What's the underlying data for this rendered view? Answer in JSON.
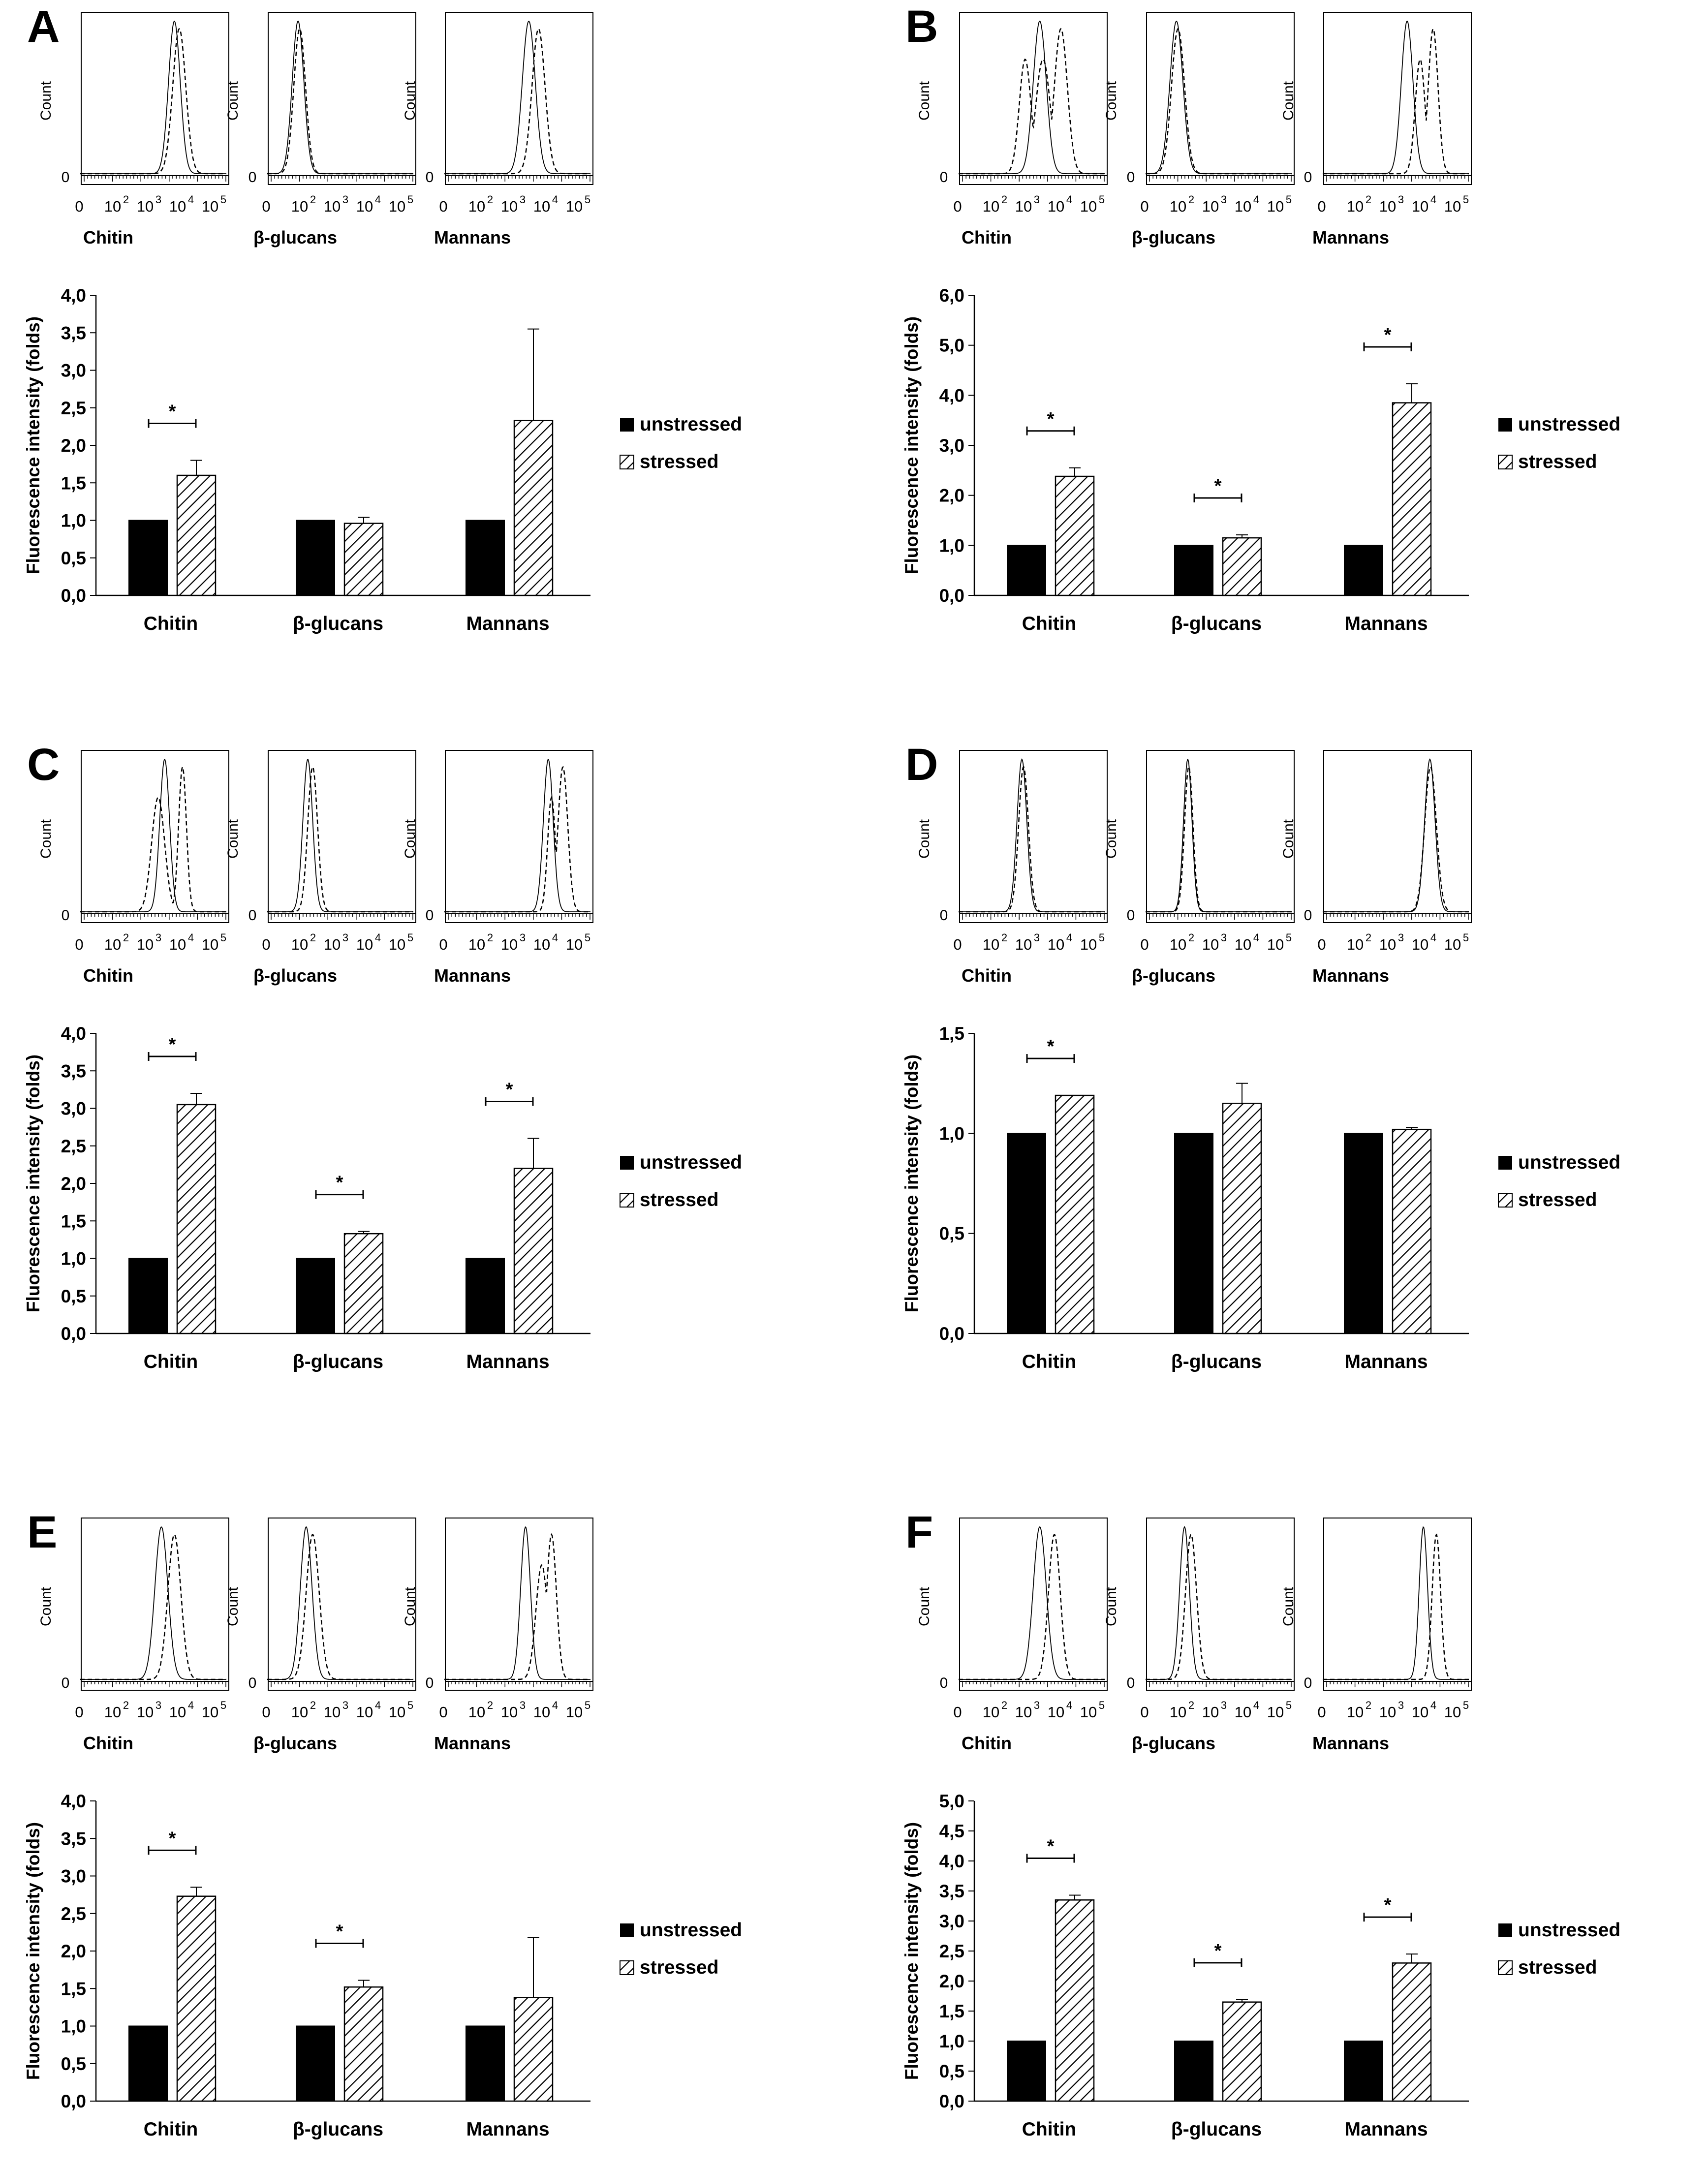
{
  "panels": [
    {
      "letter": "A",
      "hist_categories": [
        "Chitin",
        "β-glucans",
        "Mannans"
      ],
      "hist_y_label": "Count",
      "hist_y_zero": "0",
      "hist_ticks": [
        "0",
        "10",
        "10",
        "10",
        "10"
      ],
      "hist_tick_exps": [
        "",
        "2",
        "3",
        "4",
        "5"
      ],
      "histograms": [
        {
          "unstressed_peak": 3.9,
          "unstressed_width": 0.18,
          "stressed_peaks": [
            4.05
          ],
          "stressed_widths": [
            0.2
          ]
        },
        {
          "unstressed_peak": 1.95,
          "unstressed_width": 0.18,
          "stressed_peaks": [
            2.0
          ],
          "stressed_widths": [
            0.18
          ]
        },
        {
          "unstressed_peak": 3.6,
          "unstressed_width": 0.2,
          "stressed_peaks": [
            3.9
          ],
          "stressed_widths": [
            0.2
          ]
        }
      ]
    },
    {
      "letter": "B",
      "hist_categories": [
        "Chitin",
        "β-glucans",
        "Mannans"
      ],
      "hist_y_label": "Count",
      "hist_y_zero": "0",
      "hist_ticks": [
        "0",
        "10",
        "10",
        "10",
        "10"
      ],
      "hist_tick_exps": [
        "",
        "2",
        "3",
        "4",
        "5"
      ],
      "histograms": [
        {
          "unstressed_peak": 3.5,
          "unstressed_width": 0.2,
          "stressed_peaks": [
            3.05,
            3.6,
            4.15
          ],
          "stressed_widths": [
            0.18,
            0.22,
            0.2
          ]
        },
        {
          "unstressed_peak": 1.95,
          "unstressed_width": 0.2,
          "stressed_peaks": [
            2.0
          ],
          "stressed_widths": [
            0.2
          ]
        },
        {
          "unstressed_peak": 3.6,
          "unstressed_width": 0.18,
          "stressed_peaks": [
            4.0,
            4.4
          ],
          "stressed_widths": [
            0.15,
            0.15
          ]
        }
      ]
    },
    {
      "letter": "C",
      "hist_categories": [
        "Chitin",
        "β-glucans",
        "Mannans"
      ],
      "hist_y_label": "Count",
      "hist_y_zero": "0",
      "hist_ticks": [
        "0",
        "10",
        "10",
        "10",
        "10"
      ],
      "hist_tick_exps": [
        "",
        "2",
        "3",
        "4",
        "5"
      ],
      "histograms": [
        {
          "unstressed_peak": 3.6,
          "unstressed_width": 0.15,
          "stressed_peaks": [
            3.4,
            4.15
          ],
          "stressed_widths": [
            0.2,
            0.12
          ]
        },
        {
          "unstressed_peak": 2.25,
          "unstressed_width": 0.15,
          "stressed_peaks": [
            2.4
          ],
          "stressed_widths": [
            0.15
          ]
        },
        {
          "unstressed_peak": 4.2,
          "unstressed_width": 0.15,
          "stressed_peaks": [
            4.3,
            4.65
          ],
          "stressed_widths": [
            0.12,
            0.15
          ]
        }
      ]
    },
    {
      "letter": "D",
      "hist_categories": [
        "Chitin",
        "β-glucans",
        "Mannans"
      ],
      "hist_y_label": "Count",
      "hist_y_zero": "0",
      "hist_ticks": [
        "0",
        "10",
        "10",
        "10",
        "10"
      ],
      "hist_tick_exps": [
        "",
        "2",
        "3",
        "4",
        "5"
      ],
      "histograms": [
        {
          "unstressed_peak": 2.95,
          "unstressed_width": 0.15,
          "stressed_peaks": [
            3.0
          ],
          "stressed_widths": [
            0.15
          ]
        },
        {
          "unstressed_peak": 2.3,
          "unstressed_width": 0.13,
          "stressed_peaks": [
            2.33
          ],
          "stressed_widths": [
            0.13
          ]
        },
        {
          "unstressed_peak": 4.3,
          "unstressed_width": 0.16,
          "stressed_peaks": [
            4.32
          ],
          "stressed_widths": [
            0.18
          ]
        }
      ]
    },
    {
      "letter": "E",
      "hist_categories": [
        "Chitin",
        "β-glucans",
        "Mannans"
      ],
      "hist_y_label": "Count",
      "hist_y_zero": "0",
      "hist_ticks": [
        "0",
        "10",
        "10",
        "10",
        "10"
      ],
      "hist_tick_exps": [
        "",
        "2",
        "3",
        "4",
        "5"
      ],
      "histograms": [
        {
          "unstressed_peak": 3.5,
          "unstressed_width": 0.2,
          "stressed_peaks": [
            3.9
          ],
          "stressed_widths": [
            0.2
          ]
        },
        {
          "unstressed_peak": 2.2,
          "unstressed_width": 0.18,
          "stressed_peaks": [
            2.4
          ],
          "stressed_widths": [
            0.2
          ]
        },
        {
          "unstressed_peak": 3.5,
          "unstressed_width": 0.15,
          "stressed_peaks": [
            4.0,
            4.3
          ],
          "stressed_widths": [
            0.18,
            0.15
          ]
        }
      ]
    },
    {
      "letter": "F",
      "hist_categories": [
        "Chitin",
        "β-glucans",
        "Mannans"
      ],
      "hist_y_label": "Count",
      "hist_y_zero": "0",
      "hist_ticks": [
        "0",
        "10",
        "10",
        "10",
        "10"
      ],
      "hist_tick_exps": [
        "",
        "2",
        "3",
        "4",
        "5"
      ],
      "histograms": [
        {
          "unstressed_peak": 3.5,
          "unstressed_width": 0.2,
          "stressed_peaks": [
            3.95
          ],
          "stressed_widths": [
            0.18
          ]
        },
        {
          "unstressed_peak": 2.2,
          "unstressed_width": 0.15,
          "stressed_peaks": [
            2.4
          ],
          "stressed_widths": [
            0.17
          ]
        },
        {
          "unstressed_peak": 4.1,
          "unstressed_width": 0.13,
          "stressed_peaks": [
            4.5
          ],
          "stressed_widths": [
            0.13
          ]
        }
      ]
    }
  ],
  "legend": {
    "unstressed": "unstressed",
    "stressed": "stressed"
  },
  "colors": {
    "unstressed": "#000000",
    "stressed_hatch": "#000000",
    "background": "#ffffff"
  },
  "chart_data": [
    {
      "panel": "A",
      "type": "bar",
      "categories": [
        "Chitin",
        "β-glucans",
        "Mannans"
      ],
      "ylabel": "Fluorescence intensity (folds)",
      "ylim": [
        0,
        4.0
      ],
      "yticks": [
        "0,0",
        "0,5",
        "1,0",
        "1,5",
        "2,0",
        "2,5",
        "3,0",
        "3,5",
        "4,0"
      ],
      "series": [
        {
          "name": "unstressed",
          "values": [
            1.0,
            1.0,
            1.0
          ],
          "errors": [
            0,
            0,
            0
          ]
        },
        {
          "name": "stressed",
          "values": [
            1.6,
            0.96,
            2.33
          ],
          "errors": [
            0.2,
            0.08,
            1.22
          ]
        }
      ],
      "significance": [
        true,
        false,
        false
      ],
      "significance_label": "*",
      "legend": "right"
    },
    {
      "panel": "B",
      "type": "bar",
      "categories": [
        "Chitin",
        "β-glucans",
        "Mannans"
      ],
      "ylabel": "Fluorescence intensity (folds)",
      "ylim": [
        0,
        6.0
      ],
      "yticks": [
        "0,0",
        "1,0",
        "2,0",
        "3,0",
        "4,0",
        "5,0",
        "6,0"
      ],
      "series": [
        {
          "name": "unstressed",
          "values": [
            1.0,
            1.0,
            1.0
          ],
          "errors": [
            0,
            0,
            0
          ]
        },
        {
          "name": "stressed",
          "values": [
            2.38,
            1.15,
            3.85
          ],
          "errors": [
            0.17,
            0.06,
            0.38
          ]
        }
      ],
      "significance": [
        true,
        true,
        true
      ],
      "significance_label": "*",
      "legend": "right"
    },
    {
      "panel": "C",
      "type": "bar",
      "categories": [
        "Chitin",
        "β-glucans",
        "Mannans"
      ],
      "ylabel": "Fluorescence intensity (folds)",
      "ylim": [
        0,
        4.0
      ],
      "yticks": [
        "0,0",
        "0,5",
        "1,0",
        "1,5",
        "2,0",
        "2,5",
        "3,0",
        "3,5",
        "4,0"
      ],
      "series": [
        {
          "name": "unstressed",
          "values": [
            1.0,
            1.0,
            1.0
          ],
          "errors": [
            0,
            0,
            0
          ]
        },
        {
          "name": "stressed",
          "values": [
            3.05,
            1.33,
            2.2
          ],
          "errors": [
            0.15,
            0.03,
            0.4
          ]
        }
      ],
      "significance": [
        true,
        true,
        true
      ],
      "significance_label": "*",
      "legend": "right"
    },
    {
      "panel": "D",
      "type": "bar",
      "categories": [
        "Chitin",
        "β-glucans",
        "Mannans"
      ],
      "ylabel": "Fluorescence intensity (folds)",
      "ylim": [
        0,
        1.5
      ],
      "yticks": [
        "0,0",
        "0,5",
        "1,0",
        "1,5"
      ],
      "series": [
        {
          "name": "unstressed",
          "values": [
            1.0,
            1.0,
            1.0
          ],
          "errors": [
            0,
            0,
            0
          ]
        },
        {
          "name": "stressed",
          "values": [
            1.19,
            1.15,
            1.02
          ],
          "errors": [
            0.0,
            0.1,
            0.01
          ]
        }
      ],
      "significance": [
        true,
        false,
        false
      ],
      "significance_label": "*",
      "legend": "right"
    },
    {
      "panel": "E",
      "type": "bar",
      "categories": [
        "Chitin",
        "β-glucans",
        "Mannans"
      ],
      "ylabel": "Fluorescence intensity (folds)",
      "ylim": [
        0,
        4.0
      ],
      "yticks": [
        "0,0",
        "0,5",
        "1,0",
        "1,5",
        "2,0",
        "2,5",
        "3,0",
        "3,5",
        "4,0"
      ],
      "series": [
        {
          "name": "unstressed",
          "values": [
            1.0,
            1.0,
            1.0
          ],
          "errors": [
            0,
            0,
            0
          ]
        },
        {
          "name": "stressed",
          "values": [
            2.73,
            1.52,
            1.38
          ],
          "errors": [
            0.12,
            0.09,
            0.8
          ]
        }
      ],
      "significance": [
        true,
        true,
        false
      ],
      "significance_label": "*",
      "legend": "right"
    },
    {
      "panel": "F",
      "type": "bar",
      "categories": [
        "Chitin",
        "β-glucans",
        "Mannans"
      ],
      "ylabel": "Fluorescence intensity (folds)",
      "ylim": [
        0,
        5.0
      ],
      "yticks": [
        "0,0",
        "0,5",
        "1,0",
        "1,5",
        "2,0",
        "2,5",
        "3,0",
        "3,5",
        "4,0",
        "4,5",
        "5,0"
      ],
      "series": [
        {
          "name": "unstressed",
          "values": [
            1.0,
            1.0,
            1.0
          ],
          "errors": [
            0,
            0,
            0
          ]
        },
        {
          "name": "stressed",
          "values": [
            3.35,
            1.65,
            2.3
          ],
          "errors": [
            0.08,
            0.04,
            0.15
          ]
        }
      ],
      "significance": [
        true,
        true,
        true
      ],
      "significance_label": "*",
      "legend": "right"
    }
  ]
}
